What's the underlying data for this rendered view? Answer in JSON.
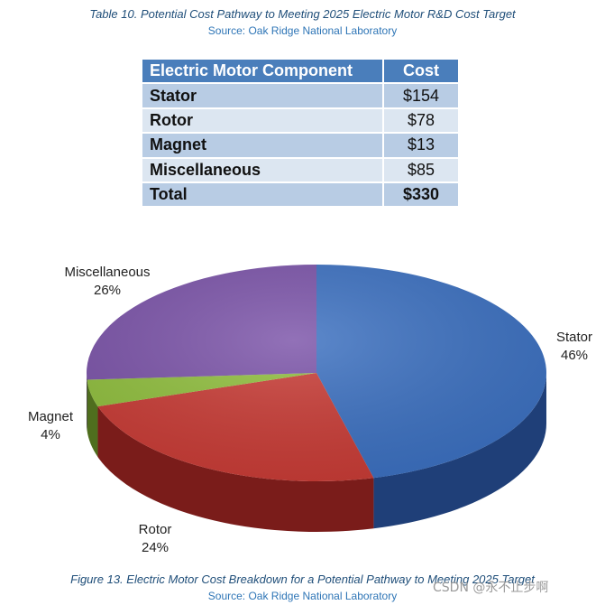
{
  "table": {
    "title": "Table 10. Potential Cost Pathway to Meeting 2025 Electric Motor R&D Cost Target",
    "source": "Source: Oak Ridge National Laboratory",
    "headers": [
      "Electric Motor Component",
      "Cost"
    ],
    "rows": [
      {
        "component": "Stator",
        "cost": "$154"
      },
      {
        "component": "Rotor",
        "cost": "$78"
      },
      {
        "component": "Magnet",
        "cost": "$13"
      },
      {
        "component": "Miscellaneous",
        "cost": "$85"
      }
    ],
    "total": {
      "component": "Total",
      "cost": "$330"
    }
  },
  "figure": {
    "title": "Figure 13. Electric Motor Cost Breakdown for a Potential Pathway to Meeting 2025 Target",
    "source": "Source: Oak Ridge National Laboratory"
  },
  "chart_data": {
    "type": "pie",
    "title": "Figure 13. Electric Motor Cost Breakdown for a Potential Pathway to Meeting 2025 Target",
    "categories": [
      "Stator",
      "Rotor",
      "Magnet",
      "Miscellaneous"
    ],
    "values": [
      46,
      24,
      4,
      26
    ],
    "labels": [
      "46%",
      "24%",
      "4%",
      "26%"
    ],
    "colors": [
      "#3a6fc0",
      "#c83a34",
      "#8fbe3c",
      "#7a52a8"
    ],
    "side_colors": [
      "#1f3f78",
      "#7a1c1a",
      "#4f6e1e",
      "#4a2f6a"
    ]
  },
  "watermark": "CSDN @永不止步啊"
}
